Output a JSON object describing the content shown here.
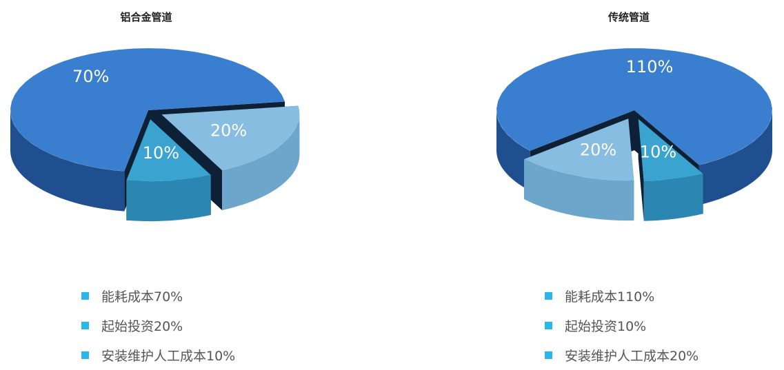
{
  "chart_data": [
    {
      "type": "pie",
      "title": "铝合金管道",
      "slices": [
        {
          "label": "20%",
          "value": 20,
          "color": "#86bde0",
          "side": "#6da6cb",
          "explode": true
        },
        {
          "label": "10%",
          "value": 10,
          "color": "#3aa3d0",
          "side": "#2b86b2",
          "explode": true
        },
        {
          "label": "70%",
          "value": 70,
          "color": "#3a7fcf",
          "side": "#1f4f8f",
          "explode": false
        }
      ],
      "legend": [
        "能耗成本70%",
        "起始投资20%",
        "安装维护人工成本10%"
      ]
    },
    {
      "type": "pie",
      "title": "传统管道",
      "slices": [
        {
          "label": "10%",
          "value": 10,
          "color": "#3aa3d0",
          "side": "#2b86b2",
          "explode": true
        },
        {
          "label": "20%",
          "value": 20,
          "color": "#86bde0",
          "side": "#6da6cb",
          "explode": true
        },
        {
          "label": "110%",
          "value": 110,
          "color": "#3a7fcf",
          "side": "#1f4f8f",
          "explode": false
        }
      ],
      "legend": [
        "能耗成本110%",
        "起始投资10%",
        "安装维护人工成本20%"
      ]
    }
  ],
  "legend_color": "#29b6ea"
}
